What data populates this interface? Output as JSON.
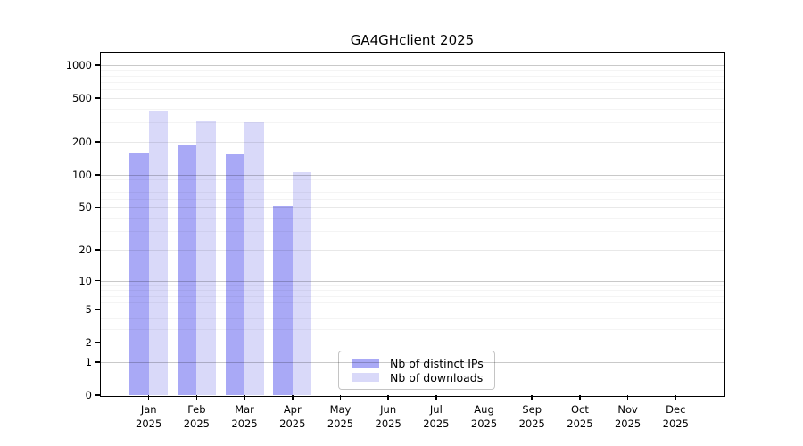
{
  "title": "GA4GHclient 2025",
  "legend": {
    "items": [
      {
        "label": "Nb of distinct IPs",
        "color": "#a9a9f6"
      },
      {
        "label": "Nb of downloads",
        "color": "#d9d9f9"
      }
    ]
  },
  "chart_data": {
    "type": "bar",
    "title": "GA4GHclient 2025",
    "categories": [
      "Jan",
      "Feb",
      "Mar",
      "Apr",
      "May",
      "Jun",
      "Jul",
      "Aug",
      "Sep",
      "Oct",
      "Nov",
      "Dec"
    ],
    "year_label": "2025",
    "series": [
      {
        "name": "Nb of distinct IPs",
        "color": "#a9a9f6",
        "values": [
          160,
          185,
          155,
          51,
          0,
          0,
          0,
          0,
          0,
          0,
          0,
          0
        ]
      },
      {
        "name": "Nb of downloads",
        "color": "#d9d9f9",
        "values": [
          378,
          308,
          300,
          105,
          0,
          0,
          0,
          0,
          0,
          0,
          0,
          0
        ]
      }
    ],
    "y_scale": "log1p",
    "y_ticks": [
      0,
      1,
      2,
      5,
      10,
      20,
      50,
      100,
      200,
      500,
      1000
    ],
    "y_decade_gridlines": [
      1,
      10,
      100,
      1000
    ],
    "y_minor_gridlines": [
      3,
      4,
      6,
      7,
      8,
      9,
      30,
      40,
      60,
      70,
      80,
      90,
      300,
      400,
      600,
      700,
      800,
      900
    ],
    "ylim": [
      0,
      1300
    ],
    "grid": true,
    "legend_position": "lower center",
    "colors": {
      "grid_decade": "#c9c9c9",
      "grid_major": "#e8e8e8",
      "grid_minor": "#f4f4f4",
      "axis": "#000000",
      "background": "#ffffff"
    }
  }
}
